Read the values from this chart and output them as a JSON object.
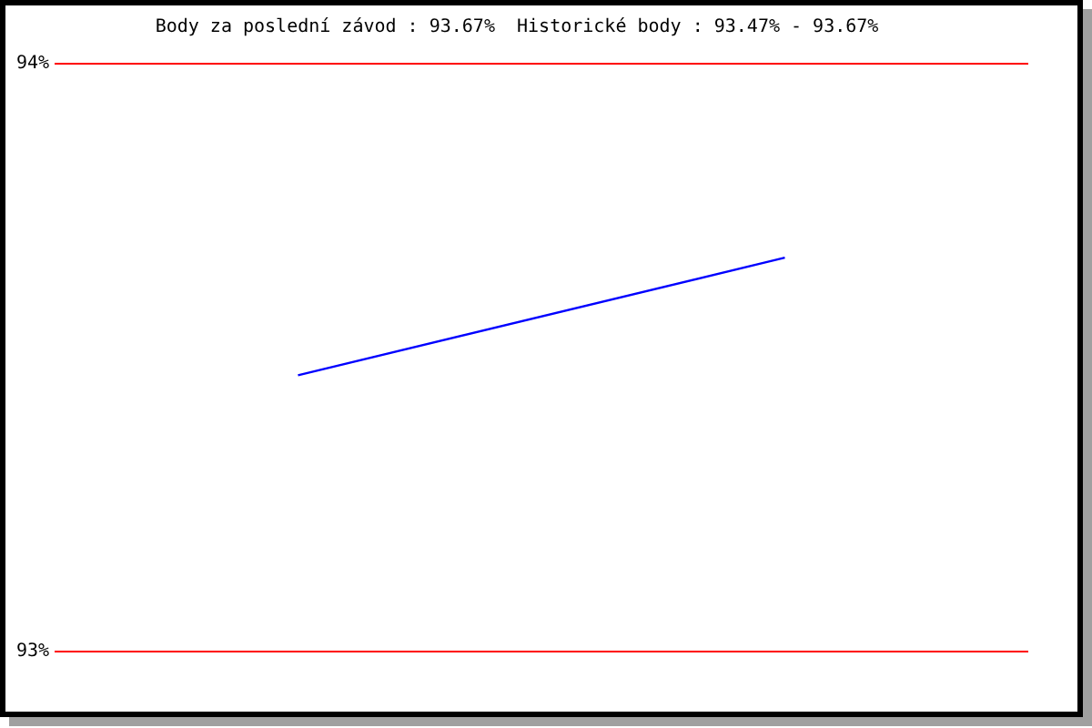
{
  "chart_data": {
    "type": "line",
    "title": "Body za poslední závod : 93.67%  Historické body : 93.47% - 93.67%",
    "categories": [
      null,
      null
    ],
    "series": [
      {
        "color": "#0000ff",
        "values": [
          93.47,
          93.67
        ]
      }
    ],
    "ylim": [
      93,
      94
    ],
    "yticks": [
      {
        "value": 93,
        "label": "93%"
      },
      {
        "value": 94,
        "label": "94%"
      }
    ],
    "grid": "y",
    "marker": "none",
    "tick_labels": "y"
  }
}
